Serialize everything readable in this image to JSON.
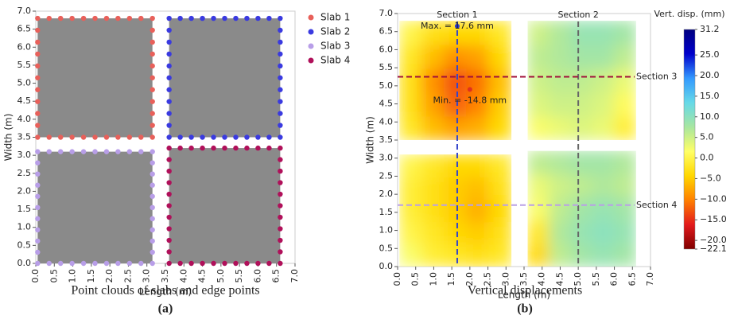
{
  "chart_data": [
    {
      "type": "scatter",
      "xlabel": "Length (m)",
      "ylabel": "Width (m)",
      "caption": "Point clouds of slabs and edge points",
      "panel": "(a)",
      "xlim": [
        0,
        7
      ],
      "ylim": [
        0,
        7
      ],
      "cloud_color": "#8a8a8a",
      "xticks": [
        {
          "value": 0,
          "label": "0.0"
        },
        0.5,
        {
          "value": 1,
          "label": "1.0"
        },
        1.5,
        {
          "value": 2,
          "label": "2.0"
        },
        2.5,
        {
          "value": 3,
          "label": "3.0"
        },
        3.5,
        {
          "value": 4,
          "label": "4.0"
        },
        4.5,
        {
          "value": 5,
          "label": "5.0"
        },
        5.5,
        {
          "value": 6,
          "label": "6.0"
        },
        6.5,
        {
          "value": 7,
          "label": "7.0"
        }
      ],
      "yticks": [
        {
          "value": 0,
          "label": "0.0"
        },
        0.5,
        {
          "value": 1,
          "label": "1.0"
        },
        1.5,
        {
          "value": 2,
          "label": "2.0"
        },
        2.5,
        {
          "value": 3,
          "label": "3.0"
        },
        3.5,
        {
          "value": 4,
          "label": "4.0"
        },
        4.5,
        {
          "value": 5,
          "label": "5.0"
        },
        5.5,
        {
          "value": 6,
          "label": "6.0"
        },
        6.5,
        {
          "value": 7,
          "label": "7.0"
        }
      ],
      "series": [
        {
          "name": "Slab 1",
          "color": "#e8605a",
          "x": [
            0.05,
            0.36,
            0.67,
            0.98,
            1.29,
            1.6,
            1.91,
            2.22,
            2.53,
            2.84,
            3.15,
            3.15,
            3.15,
            3.15,
            3.15,
            3.15,
            3.15,
            3.15,
            3.15,
            3.15,
            3.15,
            2.84,
            2.53,
            2.22,
            1.91,
            1.6,
            1.29,
            0.98,
            0.67,
            0.36,
            0.05,
            0.05,
            0.05,
            0.05,
            0.05,
            0.05,
            0.05,
            0.05,
            0.05,
            0.05
          ],
          "y": [
            6.8,
            6.8,
            6.8,
            6.8,
            6.8,
            6.8,
            6.8,
            6.8,
            6.8,
            6.8,
            6.8,
            6.47,
            6.14,
            5.81,
            5.48,
            5.15,
            4.82,
            4.49,
            4.16,
            3.83,
            3.5,
            3.5,
            3.5,
            3.5,
            3.5,
            3.5,
            3.5,
            3.5,
            3.5,
            3.5,
            3.5,
            3.83,
            4.16,
            4.49,
            4.82,
            5.15,
            5.48,
            5.81,
            6.14,
            6.47
          ]
        },
        {
          "name": "Slab 2",
          "color": "#3a3ae0",
          "x": [
            3.6,
            3.9,
            4.2,
            4.5,
            4.8,
            5.1,
            5.4,
            5.7,
            6.0,
            6.3,
            6.6,
            6.6,
            6.6,
            6.6,
            6.6,
            6.6,
            6.6,
            6.6,
            6.6,
            6.6,
            6.6,
            6.3,
            6.0,
            5.7,
            5.4,
            5.1,
            4.8,
            4.5,
            4.2,
            3.9,
            3.6,
            3.6,
            3.6,
            3.6,
            3.6,
            3.6,
            3.6,
            3.6,
            3.6,
            3.6
          ],
          "y": [
            6.8,
            6.8,
            6.8,
            6.8,
            6.8,
            6.8,
            6.8,
            6.8,
            6.8,
            6.8,
            6.8,
            6.47,
            6.14,
            5.81,
            5.48,
            5.15,
            4.82,
            4.49,
            4.16,
            3.83,
            3.5,
            3.5,
            3.5,
            3.5,
            3.5,
            3.5,
            3.5,
            3.5,
            3.5,
            3.5,
            3.5,
            3.83,
            4.16,
            4.49,
            4.82,
            5.15,
            5.48,
            5.81,
            6.14,
            6.47
          ]
        },
        {
          "name": "Slab 3",
          "color": "#b89ee8",
          "x": [
            0.05,
            0.36,
            0.67,
            0.98,
            1.29,
            1.6,
            1.91,
            2.22,
            2.53,
            2.84,
            3.15,
            3.15,
            3.15,
            3.15,
            3.15,
            3.15,
            3.15,
            3.15,
            3.15,
            3.15,
            3.15,
            2.84,
            2.53,
            2.22,
            1.91,
            1.6,
            1.29,
            0.98,
            0.67,
            0.36,
            0.05,
            0.05,
            0.05,
            0.05,
            0.05,
            0.05,
            0.05,
            0.05,
            0.05,
            0.05
          ],
          "y": [
            3.1,
            3.1,
            3.1,
            3.1,
            3.1,
            3.1,
            3.1,
            3.1,
            3.1,
            3.1,
            3.1,
            2.79,
            2.48,
            2.17,
            1.86,
            1.55,
            1.24,
            0.93,
            0.62,
            0.31,
            0,
            0,
            0,
            0,
            0,
            0,
            0,
            0,
            0,
            0,
            0,
            0.31,
            0.62,
            0.93,
            1.24,
            1.55,
            1.86,
            2.17,
            2.48,
            2.79
          ]
        },
        {
          "name": "Slab 4",
          "color": "#b0105a",
          "x": [
            3.6,
            3.9,
            4.2,
            4.5,
            4.8,
            5.1,
            5.4,
            5.7,
            6.0,
            6.3,
            6.6,
            6.6,
            6.6,
            6.6,
            6.6,
            6.6,
            6.6,
            6.6,
            6.6,
            6.6,
            6.6,
            6.3,
            6.0,
            5.7,
            5.4,
            5.1,
            4.8,
            4.5,
            4.2,
            3.9,
            3.6,
            3.6,
            3.6,
            3.6,
            3.6,
            3.6,
            3.6,
            3.6,
            3.6,
            3.6
          ],
          "y": [
            3.2,
            3.2,
            3.2,
            3.2,
            3.2,
            3.2,
            3.2,
            3.2,
            3.2,
            3.2,
            3.2,
            2.88,
            2.56,
            2.24,
            1.92,
            1.6,
            1.28,
            0.96,
            0.64,
            0.32,
            0,
            0,
            0,
            0,
            0,
            0,
            0,
            0,
            0,
            0,
            0,
            0.32,
            0.64,
            0.96,
            1.28,
            1.6,
            1.92,
            2.24,
            2.56,
            2.88
          ]
        }
      ]
    },
    {
      "type": "heatmap",
      "xlabel": "Length (m)",
      "ylabel": "Width (m)",
      "caption": "Vertical displacements",
      "panel": "(b)",
      "xlim": [
        0,
        7
      ],
      "ylim": [
        0,
        7
      ],
      "xticks": [
        {
          "value": 0,
          "label": "0.0"
        },
        0.5,
        {
          "value": 1,
          "label": "1.0"
        },
        1.5,
        {
          "value": 2,
          "label": "2.0"
        },
        2.5,
        {
          "value": 3,
          "label": "3.0"
        },
        3.5,
        {
          "value": 4,
          "label": "4.0"
        },
        4.5,
        {
          "value": 5,
          "label": "5.0"
        },
        5.5,
        {
          "value": 6,
          "label": "6.0"
        },
        6.5,
        {
          "value": 7,
          "label": "7.0"
        }
      ],
      "yticks": [
        {
          "value": 0,
          "label": "0.0"
        },
        0.5,
        {
          "value": 1,
          "label": "1.0"
        },
        1.5,
        {
          "value": 2,
          "label": "2.0"
        },
        2.5,
        {
          "value": 3,
          "label": "3.0"
        },
        3.5,
        {
          "value": 4,
          "label": "4.0"
        },
        4.5,
        {
          "value": 5,
          "label": "5.0"
        },
        5.5,
        {
          "value": 6,
          "label": "6.0"
        },
        6.5,
        {
          "value": 7,
          "label": "7.0"
        }
      ],
      "colorbar_label": "Vert. disp. (mm)",
      "clim": [
        -22.1,
        31.2
      ],
      "colormap": [
        "#7f0000",
        "#e31a1c",
        "#ff7f00",
        "#ffd700",
        "#ffff66",
        "#a8e6a0",
        "#66d9e8",
        "#3399ff",
        "#0000cc",
        "#00007f"
      ],
      "cticks": [
        31.2,
        {
          "value": 25,
          "label": "25.0"
        },
        {
          "value": 20,
          "label": "20.0"
        },
        {
          "value": 15,
          "label": "15.0"
        },
        {
          "value": 10,
          "label": "10.0"
        },
        {
          "value": 5,
          "label": "5.0"
        },
        {
          "value": 0,
          "label": "0.0"
        },
        {
          "value": -5,
          "label": "−5.0"
        },
        {
          "value": -10,
          "label": "−10.0"
        },
        {
          "value": -15,
          "label": "−15.0"
        },
        {
          "value": -20,
          "label": "−20.0"
        },
        {
          "value": -22.1,
          "label": "−22.1"
        }
      ],
      "slabs": [
        {
          "x_edges": [
            0.05,
            0.67,
            1.29,
            1.91,
            2.53,
            3.15
          ],
          "y_edges": [
            3.5,
            4.16,
            4.82,
            5.48,
            6.14,
            6.8
          ],
          "z": [
            [
              -2,
              -6,
              -8,
              -7,
              -4
            ],
            [
              -3,
              -8,
              -12,
              -10,
              -5
            ],
            [
              -3,
              -9,
              -13,
              -11,
              -6
            ],
            [
              -2,
              -6,
              -9,
              -8,
              -4
            ],
            [
              0,
              -3,
              -4,
              -4,
              -2
            ]
          ]
        },
        {
          "x_edges": [
            3.6,
            4.2,
            4.8,
            5.4,
            6.0,
            6.6
          ],
          "y_edges": [
            3.5,
            4.16,
            4.82,
            5.48,
            6.14,
            6.8
          ],
          "z": [
            [
              2,
              3,
              4,
              3,
              -1
            ],
            [
              4,
              5,
              5,
              4,
              1
            ],
            [
              5,
              6,
              6,
              5,
              3
            ],
            [
              6,
              7,
              8,
              8,
              6
            ],
            [
              5,
              7,
              9,
              9,
              8
            ]
          ]
        },
        {
          "x_edges": [
            0.05,
            0.67,
            1.29,
            1.91,
            2.53,
            3.15
          ],
          "y_edges": [
            0,
            0.62,
            1.24,
            1.86,
            2.48,
            3.1
          ],
          "z": [
            [
              2,
              -1,
              -2,
              -3,
              -2
            ],
            [
              0,
              -2,
              -4,
              -5,
              -3
            ],
            [
              -1,
              -3,
              -5,
              -7,
              -4
            ],
            [
              -1,
              -3,
              -5,
              -6,
              -3
            ],
            [
              0,
              -2,
              -4,
              -4,
              -2
            ]
          ]
        },
        {
          "x_edges": [
            3.6,
            4.2,
            4.8,
            5.4,
            6.0,
            6.6
          ],
          "y_edges": [
            0,
            0.64,
            1.28,
            1.92,
            2.56,
            3.2
          ],
          "z": [
            [
              -4,
              6,
              8,
              9,
              8
            ],
            [
              -2,
              7,
              9,
              10,
              9
            ],
            [
              2,
              6,
              8,
              9,
              8
            ],
            [
              3,
              5,
              6,
              7,
              6
            ],
            [
              6,
              7,
              8,
              8,
              7
            ]
          ]
        }
      ],
      "sections": [
        {
          "label": "Section 1",
          "x": 1.65,
          "color": "#3344cc"
        },
        {
          "label": "Section 2",
          "x": 5.0,
          "color": "#666666"
        },
        {
          "label": "Section 3",
          "y": 5.25,
          "color": "#a0103a"
        },
        {
          "label": "Section 4",
          "y": 1.7,
          "color": "#b9a0e6"
        }
      ],
      "annotations": [
        {
          "text": "Max. = 17.6 mm",
          "x": 1.65,
          "y": 6.65,
          "color": "#2a3ad0"
        },
        {
          "text": "Min. = -14.8 mm",
          "x": 2.0,
          "y": 4.9,
          "color": "#e03020"
        }
      ]
    }
  ]
}
